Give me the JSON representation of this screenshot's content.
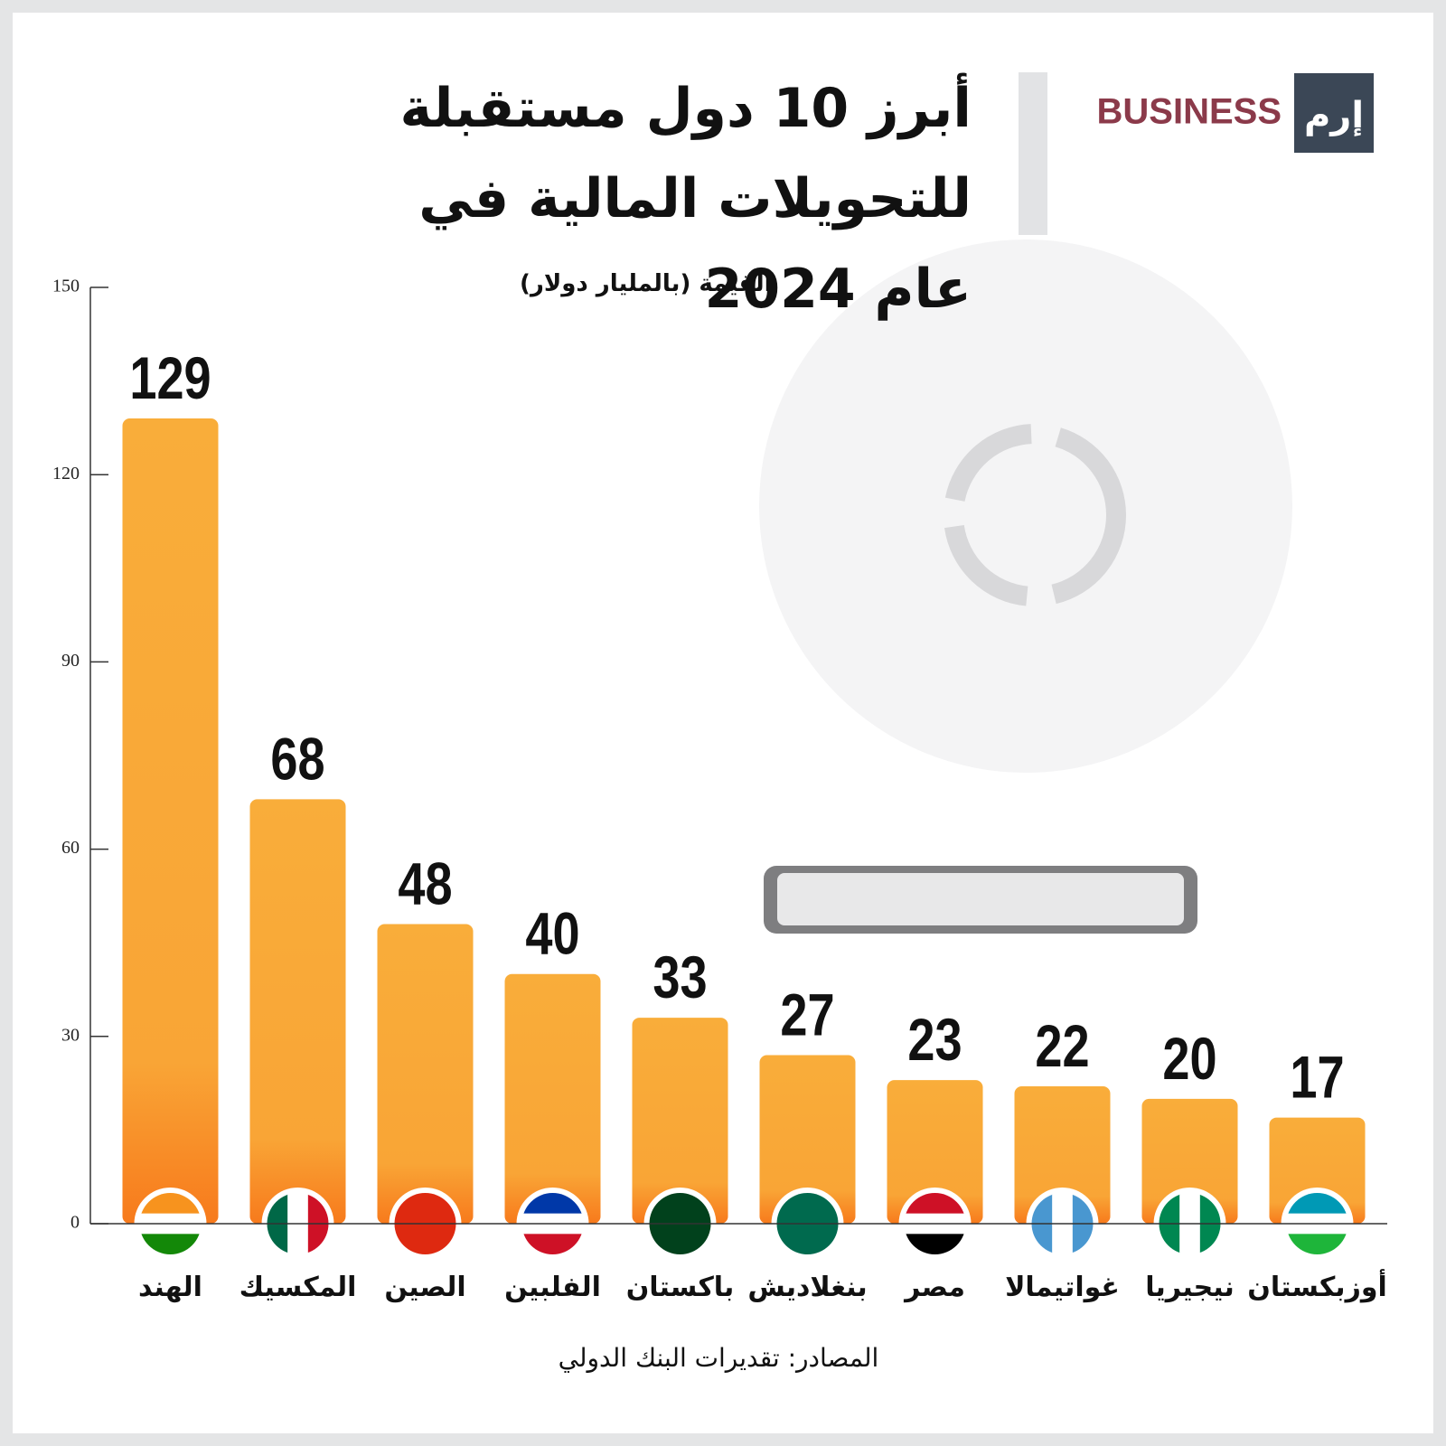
{
  "brand": {
    "name": "BUSINESS",
    "mark": "إرم"
  },
  "chart_data": {
    "type": "bar",
    "title": "أبرز 10 دول مستقبلة للتحويلات المالية في عام 2024",
    "y_label": "القيمة (بالمليار دولار)",
    "source": "المصادر: تقديرات البنك الدولي",
    "categories": [
      "الهند",
      "المكسيك",
      "الصين",
      "الفلبين",
      "باكستان",
      "بنغلاديش",
      "مصر",
      "غواتيمالا",
      "نيجيريا",
      "أوزبكستان"
    ],
    "values": [
      129,
      68,
      48,
      40,
      33,
      27,
      23,
      22,
      20,
      17
    ],
    "color": "#f9ad3a",
    "ylim": [
      0,
      150
    ],
    "yticks": [
      0,
      30,
      60,
      90,
      120,
      150
    ],
    "grid": false
  }
}
